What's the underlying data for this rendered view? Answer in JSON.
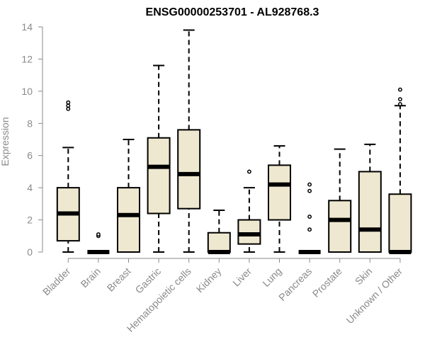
{
  "chart_data": {
    "type": "box",
    "title": "ENSG00000253701 - AL928768.3",
    "xlabel": "",
    "ylabel": "Expression",
    "ylim": [
      0,
      14
    ],
    "yticks": [
      0,
      2,
      4,
      6,
      8,
      10,
      12,
      14
    ],
    "categories": [
      "Bladder",
      "Brain",
      "Breast",
      "Gastric",
      "Hematopoietic cells",
      "Kidney",
      "Liver",
      "Lung",
      "Pancreas",
      "Prostate",
      "Skin",
      "Unknown / Other"
    ],
    "boxes": [
      {
        "category": "Bladder",
        "whisker_low": 0,
        "q1": 0.7,
        "median": 2.4,
        "q3": 4.0,
        "whisker_high": 6.5,
        "outliers": [
          8.9,
          9.1,
          9.3
        ]
      },
      {
        "category": "Brain",
        "whisker_low": 0,
        "q1": 0,
        "median": 0,
        "q3": 0,
        "whisker_high": 0,
        "outliers": [
          1.0,
          1.1
        ]
      },
      {
        "category": "Breast",
        "whisker_low": 0,
        "q1": 0,
        "median": 2.3,
        "q3": 4.0,
        "whisker_high": 7.0,
        "outliers": []
      },
      {
        "category": "Gastric",
        "whisker_low": 0,
        "q1": 2.4,
        "median": 5.3,
        "q3": 7.1,
        "whisker_high": 11.6,
        "outliers": []
      },
      {
        "category": "Hematopoietic cells",
        "whisker_low": 0,
        "q1": 2.7,
        "median": 4.85,
        "q3": 7.6,
        "whisker_high": 13.8,
        "outliers": []
      },
      {
        "category": "Kidney",
        "whisker_low": 0,
        "q1": 0,
        "median": 0,
        "q3": 1.2,
        "whisker_high": 2.6,
        "outliers": []
      },
      {
        "category": "Liver",
        "whisker_low": 0,
        "q1": 0.5,
        "median": 1.1,
        "q3": 2.0,
        "whisker_high": 4.0,
        "outliers": [
          5.0
        ]
      },
      {
        "category": "Lung",
        "whisker_low": 0,
        "q1": 2.0,
        "median": 4.2,
        "q3": 5.4,
        "whisker_high": 6.6,
        "outliers": []
      },
      {
        "category": "Pancreas",
        "whisker_low": 0,
        "q1": 0,
        "median": 0,
        "q3": 0,
        "whisker_high": 0,
        "outliers": [
          1.4,
          2.2,
          3.8,
          4.2
        ]
      },
      {
        "category": "Prostate",
        "whisker_low": 0,
        "q1": 0,
        "median": 2.0,
        "q3": 3.2,
        "whisker_high": 6.4,
        "outliers": []
      },
      {
        "category": "Skin",
        "whisker_low": 0,
        "q1": 0,
        "median": 1.4,
        "q3": 5.0,
        "whisker_high": 6.7,
        "outliers": []
      },
      {
        "category": "Unknown / Other",
        "whisker_low": 0,
        "q1": 0,
        "median": 0,
        "q3": 3.6,
        "whisker_high": 9.1,
        "outliers": [
          9.2,
          9.5,
          10.1
        ]
      }
    ],
    "box_fill": "#efe8d0",
    "line_color": "#000000",
    "axis_color": "#8a8a8a",
    "grid": false,
    "legend": "none"
  }
}
